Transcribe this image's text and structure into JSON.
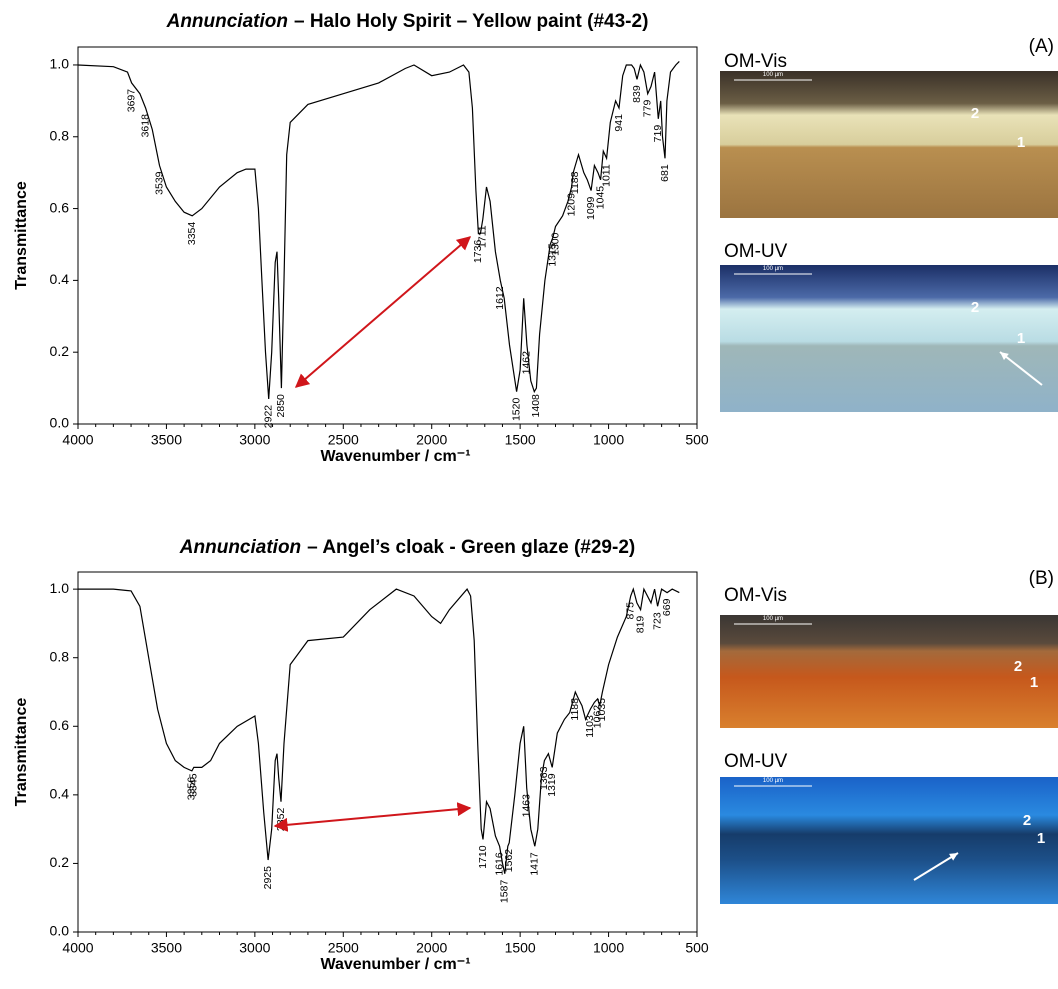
{
  "chart_data": [
    {
      "type": "line",
      "title": {
        "emphasis": "Annunciation",
        "rest": "– Halo Holy Spirit – Yellow paint (#43-2)"
      },
      "xlabel": "Wavenumber / cm⁻¹",
      "ylabel": "Transmittance",
      "xlim": [
        4000,
        500
      ],
      "ylim": [
        0,
        1.05
      ],
      "xticks": [
        4000,
        3500,
        3000,
        2500,
        2000,
        1500,
        1000,
        500
      ],
      "yticks": [
        {
          "value": 0,
          "label": "0.0"
        },
        {
          "value": 0.2,
          "label": "0.2"
        },
        {
          "value": 0.4,
          "label": "0.4"
        },
        {
          "value": 0.6,
          "label": "0.6"
        },
        {
          "value": 0.8,
          "label": "0.8"
        },
        {
          "value": 1,
          "label": "1.0"
        }
      ],
      "series": [
        {
          "color": "#000000",
          "x": [
            4000,
            3800,
            3720,
            3697,
            3650,
            3618,
            3580,
            3539,
            3500,
            3450,
            3400,
            3354,
            3300,
            3200,
            3100,
            3050,
            3000,
            2980,
            2960,
            2940,
            2922,
            2905,
            2885,
            2875,
            2865,
            2850,
            2835,
            2820,
            2800,
            2700,
            2500,
            2300,
            2150,
            2100,
            2000,
            1900,
            1820,
            1790,
            1770,
            1750,
            1736,
            1725,
            1711,
            1690,
            1670,
            1640,
            1612,
            1590,
            1560,
            1520,
            1500,
            1480,
            1462,
            1440,
            1420,
            1408,
            1390,
            1360,
            1330,
            1315,
            1300,
            1260,
            1230,
            1209,
            1200,
            1188,
            1170,
            1140,
            1120,
            1099,
            1080,
            1060,
            1045,
            1030,
            1011,
            990,
            960,
            941,
            920,
            900,
            870,
            855,
            839,
            820,
            800,
            779,
            760,
            740,
            719,
            705,
            695,
            681,
            670,
            650,
            620,
            600
          ],
          "values": [
            1.0,
            0.995,
            0.98,
            0.95,
            0.92,
            0.88,
            0.82,
            0.72,
            0.66,
            0.62,
            0.59,
            0.58,
            0.6,
            0.66,
            0.7,
            0.71,
            0.71,
            0.6,
            0.4,
            0.2,
            0.07,
            0.2,
            0.45,
            0.48,
            0.35,
            0.1,
            0.4,
            0.75,
            0.84,
            0.89,
            0.92,
            0.95,
            0.99,
            1.0,
            0.97,
            0.98,
            1.0,
            0.98,
            0.88,
            0.65,
            0.53,
            0.53,
            0.57,
            0.66,
            0.62,
            0.48,
            0.4,
            0.35,
            0.22,
            0.09,
            0.15,
            0.35,
            0.22,
            0.12,
            0.09,
            0.1,
            0.25,
            0.4,
            0.5,
            0.52,
            0.55,
            0.58,
            0.62,
            0.66,
            0.7,
            0.72,
            0.75,
            0.7,
            0.68,
            0.65,
            0.72,
            0.7,
            0.68,
            0.76,
            0.74,
            0.84,
            0.9,
            0.88,
            0.97,
            1.0,
            1.0,
            0.99,
            0.96,
            1.0,
            0.98,
            0.92,
            0.94,
            0.98,
            0.85,
            0.9,
            0.8,
            0.74,
            0.9,
            0.98,
            1.0,
            1.01
          ]
        }
      ],
      "peaks": [
        3697,
        3618,
        3539,
        3354,
        2922,
        2850,
        1736,
        1711,
        1612,
        1520,
        1462,
        1408,
        1315,
        1300,
        1209,
        1188,
        1099,
        1045,
        1011,
        941,
        839,
        779,
        719,
        681
      ]
    },
    {
      "type": "line",
      "title": {
        "emphasis": "Annunciation",
        "rest": "– Angel’s cloak - Green glaze (#29-2)"
      },
      "xlabel": "Wavenumber / cm⁻¹",
      "ylabel": "Transmittance",
      "xlim": [
        4000,
        500
      ],
      "ylim": [
        0,
        1.05
      ],
      "xticks": [
        4000,
        3500,
        3000,
        2500,
        2000,
        1500,
        1000,
        500
      ],
      "yticks": [
        {
          "value": 0,
          "label": "0.0"
        },
        {
          "value": 0.2,
          "label": "0.2"
        },
        {
          "value": 0.4,
          "label": "0.4"
        },
        {
          "value": 0.6,
          "label": "0.6"
        },
        {
          "value": 0.8,
          "label": "0.8"
        },
        {
          "value": 1,
          "label": "1.0"
        }
      ],
      "series": [
        {
          "color": "#000000",
          "x": [
            4000,
            3800,
            3700,
            3650,
            3600,
            3550,
            3500,
            3450,
            3400,
            3356,
            3345,
            3300,
            3250,
            3200,
            3100,
            3000,
            2980,
            2950,
            2925,
            2905,
            2885,
            2875,
            2865,
            2852,
            2835,
            2800,
            2700,
            2500,
            2350,
            2200,
            2100,
            2000,
            1950,
            1900,
            1800,
            1780,
            1760,
            1740,
            1720,
            1710,
            1690,
            1670,
            1640,
            1616,
            1600,
            1587,
            1570,
            1562,
            1530,
            1500,
            1480,
            1463,
            1440,
            1417,
            1400,
            1380,
            1363,
            1340,
            1319,
            1290,
            1250,
            1220,
            1188,
            1170,
            1150,
            1130,
            1103,
            1080,
            1062,
            1050,
            1035,
            1000,
            950,
            900,
            875,
            860,
            840,
            819,
            800,
            760,
            740,
            723,
            700,
            669,
            640,
            600
          ],
          "values": [
            1.0,
            1.0,
            0.995,
            0.95,
            0.8,
            0.65,
            0.55,
            0.5,
            0.48,
            0.47,
            0.48,
            0.48,
            0.5,
            0.55,
            0.6,
            0.63,
            0.55,
            0.35,
            0.21,
            0.3,
            0.5,
            0.52,
            0.45,
            0.38,
            0.55,
            0.78,
            0.85,
            0.86,
            0.94,
            1.0,
            0.98,
            0.92,
            0.9,
            0.94,
            1.0,
            0.98,
            0.85,
            0.55,
            0.3,
            0.27,
            0.38,
            0.36,
            0.28,
            0.25,
            0.2,
            0.17,
            0.25,
            0.26,
            0.4,
            0.55,
            0.6,
            0.42,
            0.3,
            0.25,
            0.3,
            0.45,
            0.5,
            0.52,
            0.48,
            0.58,
            0.62,
            0.64,
            0.7,
            0.68,
            0.66,
            0.62,
            0.65,
            0.67,
            0.68,
            0.66,
            0.7,
            0.78,
            0.86,
            0.92,
            0.98,
            1.0,
            0.96,
            0.94,
            1.0,
            0.96,
            1.0,
            0.95,
            1.0,
            0.99,
            1.0,
            0.99
          ]
        }
      ],
      "peaks": [
        3356,
        3345,
        2925,
        2852,
        1710,
        1616,
        1587,
        1562,
        1463,
        1417,
        1363,
        1319,
        1188,
        1103,
        1062,
        1035,
        875,
        819,
        723,
        669
      ]
    }
  ],
  "panels": [
    {
      "label": "(A)",
      "images": [
        {
          "title": "OM-Vis",
          "scale": "100 µm",
          "layers": [
            "2",
            "1"
          ]
        },
        {
          "title": "OM-UV",
          "scale": "100 µm",
          "layers": [
            "2",
            "1"
          ]
        }
      ]
    },
    {
      "label": "(B)",
      "images": [
        {
          "title": "OM-Vis",
          "scale": "100 µm",
          "layers": [
            "2",
            "1"
          ]
        },
        {
          "title": "OM-UV",
          "scale": "100 µm",
          "layers": [
            "2",
            "1"
          ]
        }
      ]
    }
  ]
}
